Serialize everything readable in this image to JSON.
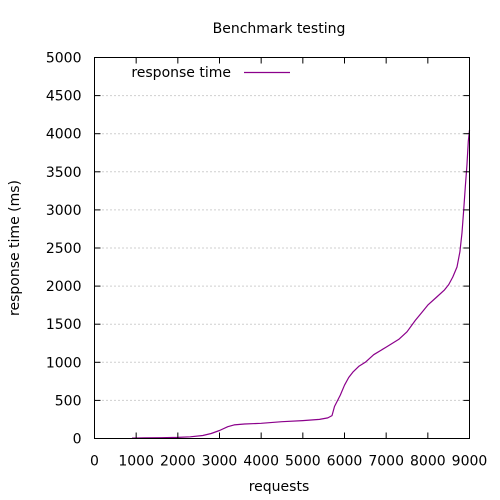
{
  "chart_data": {
    "type": "line",
    "title": "Benchmark testing",
    "xlabel": "requests",
    "ylabel": "response time (ms)",
    "xlim": [
      0,
      9000
    ],
    "ylim": [
      0,
      5000
    ],
    "xticks": [
      0,
      1000,
      2000,
      3000,
      4000,
      5000,
      6000,
      7000,
      8000,
      9000
    ],
    "yticks": [
      0,
      500,
      1000,
      1500,
      2000,
      2500,
      3000,
      3500,
      4000,
      4500,
      5000
    ],
    "grid": "horizontal dotted",
    "legend_position": "top-left",
    "series": [
      {
        "name": "response time",
        "color": "#8b008b",
        "points": [
          [
            900,
            5
          ],
          [
            1200,
            8
          ],
          [
            1600,
            10
          ],
          [
            2000,
            15
          ],
          [
            2300,
            22
          ],
          [
            2600,
            40
          ],
          [
            2800,
            65
          ],
          [
            3000,
            105
          ],
          [
            3200,
            155
          ],
          [
            3350,
            178
          ],
          [
            3600,
            190
          ],
          [
            4000,
            200
          ],
          [
            4500,
            220
          ],
          [
            5000,
            235
          ],
          [
            5400,
            250
          ],
          [
            5600,
            270
          ],
          [
            5700,
            300
          ],
          [
            5760,
            420
          ],
          [
            5900,
            570
          ],
          [
            6000,
            700
          ],
          [
            6100,
            800
          ],
          [
            6200,
            870
          ],
          [
            6350,
            950
          ],
          [
            6500,
            1000
          ],
          [
            6700,
            1100
          ],
          [
            7000,
            1200
          ],
          [
            7300,
            1300
          ],
          [
            7500,
            1400
          ],
          [
            7700,
            1550
          ],
          [
            7850,
            1650
          ],
          [
            8000,
            1750
          ],
          [
            8200,
            1850
          ],
          [
            8400,
            1950
          ],
          [
            8500,
            2020
          ],
          [
            8600,
            2120
          ],
          [
            8700,
            2250
          ],
          [
            8770,
            2450
          ],
          [
            8820,
            2700
          ],
          [
            8860,
            3000
          ],
          [
            8900,
            3300
          ],
          [
            8940,
            3600
          ],
          [
            8970,
            3900
          ],
          [
            9000,
            4050
          ]
        ]
      }
    ]
  }
}
